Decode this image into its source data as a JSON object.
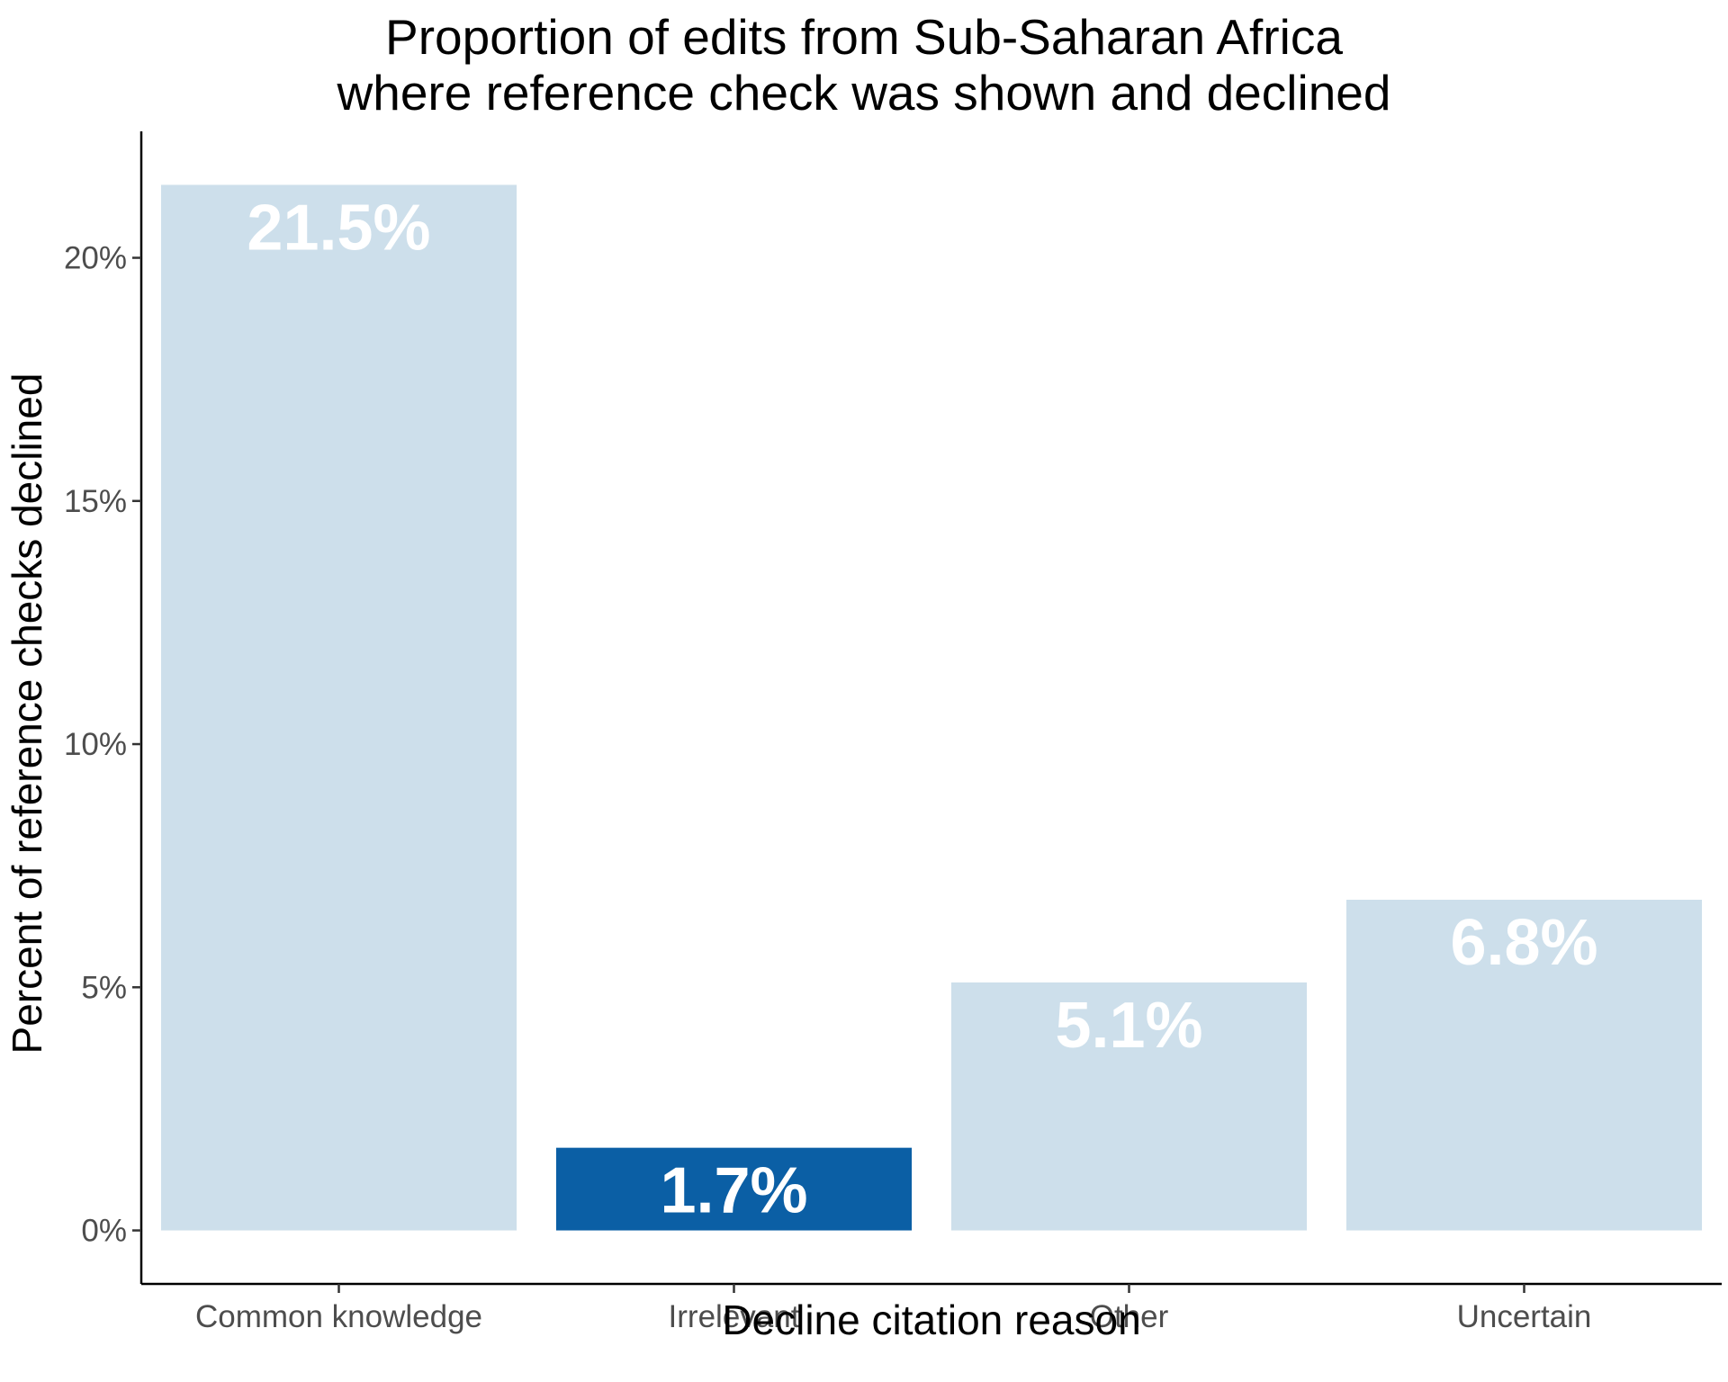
{
  "chart_data": {
    "type": "bar",
    "title_lines": [
      "Proportion of edits from Sub-Saharan Africa",
      "where reference check was shown and declined"
    ],
    "xlabel": "Decline citation reason",
    "ylabel": "Percent of reference checks declined",
    "categories": [
      "Common knowledge",
      "Irrelevant",
      "Other",
      "Uncertain"
    ],
    "values": [
      21.5,
      1.7,
      5.1,
      6.8
    ],
    "value_labels": [
      "21.5%",
      "1.7%",
      "5.1%",
      "6.8%"
    ],
    "bar_colors": [
      "#cddfeb",
      "#0b5fa5",
      "#cddfeb",
      "#cddfeb"
    ],
    "label_color": "#ffffff",
    "ylim": [
      -1.1,
      22.6
    ],
    "yticks": [
      0,
      5,
      10,
      15,
      20
    ],
    "ytick_labels": [
      "0%",
      "5%",
      "10%",
      "15%",
      "20%"
    ],
    "grid": false,
    "legend": "none"
  }
}
